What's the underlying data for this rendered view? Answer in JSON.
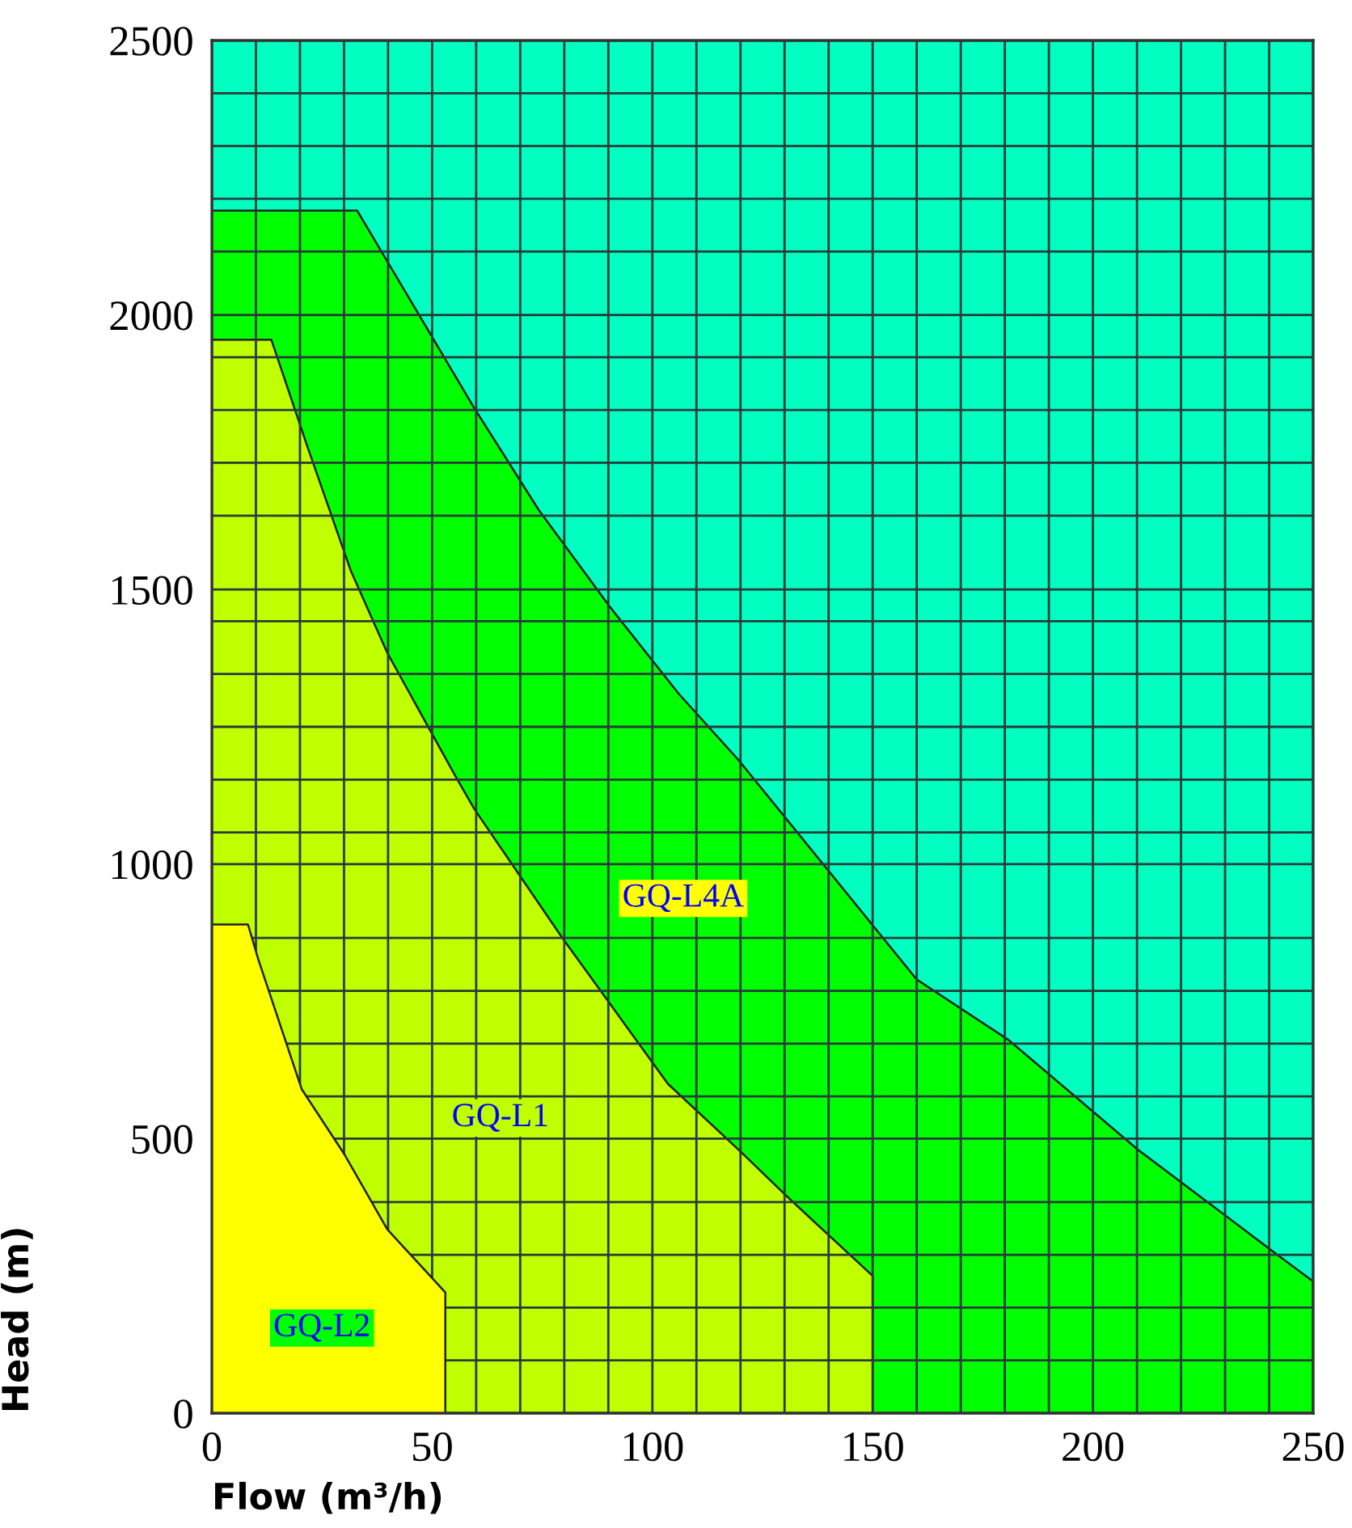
{
  "chart_data": {
    "type": "area",
    "xlabel": "Flow (m³/h)",
    "ylabel": "Head (m)",
    "xlim": [
      0,
      250
    ],
    "ylim": [
      0,
      2500
    ],
    "xticks": [
      0,
      {
        "value": 10,
        "label": null
      },
      {
        "value": 20,
        "label": null
      },
      {
        "value": 30,
        "label": null
      },
      {
        "value": 40,
        "label": null
      },
      50,
      {
        "value": 60,
        "label": null
      },
      {
        "value": 70,
        "label": null
      },
      {
        "value": 80,
        "label": null
      },
      {
        "value": 90,
        "label": null
      },
      100,
      {
        "value": 110,
        "label": null
      },
      {
        "value": 120,
        "label": null
      },
      {
        "value": 130,
        "label": null
      },
      {
        "value": 140,
        "label": null
      },
      150,
      {
        "value": 160,
        "label": null
      },
      {
        "value": 170,
        "label": null
      },
      {
        "value": 180,
        "label": null
      },
      {
        "value": 190,
        "label": null
      },
      200,
      {
        "value": 210,
        "label": null
      },
      {
        "value": 220,
        "label": null
      },
      {
        "value": 230,
        "label": null
      },
      {
        "value": 240,
        "label": null
      },
      250
    ],
    "yticks": [
      0,
      {
        "value": 96.2,
        "label": null
      },
      {
        "value": 192.3,
        "label": null
      },
      {
        "value": 288.5,
        "label": null
      },
      {
        "value": 384.6,
        "label": null
      },
      500,
      {
        "value": 576.9,
        "label": null
      },
      {
        "value": 673.1,
        "label": null
      },
      {
        "value": 769.2,
        "label": null
      },
      {
        "value": 865.4,
        "label": null
      },
      1000,
      {
        "value": 1057.7,
        "label": null
      },
      {
        "value": 1153.8,
        "label": null
      },
      {
        "value": 1250,
        "label": null
      },
      {
        "value": 1346.2,
        "label": null
      },
      {
        "value": 1442.3,
        "label": null
      },
      1500,
      {
        "value": 1634.6,
        "label": null
      },
      {
        "value": 1730.8,
        "label": null
      },
      {
        "value": 1826.9,
        "label": null
      },
      {
        "value": 1923.1,
        "label": null
      },
      2000,
      {
        "value": 2115.4,
        "label": null
      },
      {
        "value": 2211.5,
        "label": null
      },
      {
        "value": 2307.7,
        "label": null
      },
      {
        "value": 2403.8,
        "label": null
      },
      2500
    ],
    "grid": true,
    "legend": false,
    "series": [
      {
        "color": "#00ff00",
        "x": [
          0,
          33,
          59.6,
          74.2,
          90.2,
          106,
          119.5,
          160,
          180.8,
          210.2,
          240.8,
          250
        ],
        "values": [
          2190,
          2190,
          1830,
          1645,
          1470,
          1310,
          1190,
          790,
          680,
          480,
          295,
          240
        ]
      },
      {
        "color": "#bfff00",
        "x": [
          0,
          13.5,
          21.7,
          31.5,
          39.8,
          55.3,
          59.6,
          79.6,
          103.5,
          120.2,
          130.5,
          150
        ],
        "values": [
          1955,
          1955,
          1760,
          1535,
          1385,
          1160,
          1100,
          865,
          600,
          475,
          395,
          250
        ]
      },
      {
        "color": "#ffff00",
        "x": [
          0,
          8.2,
          10.6,
          20.4,
          30.2,
          39.8,
          53
        ],
        "values": [
          890,
          890,
          825,
          590,
          470,
          335,
          220
        ]
      }
    ],
    "annotations": [
      "GQ-L4A",
      "GQ-L1",
      "GQ-L2"
    ]
  }
}
